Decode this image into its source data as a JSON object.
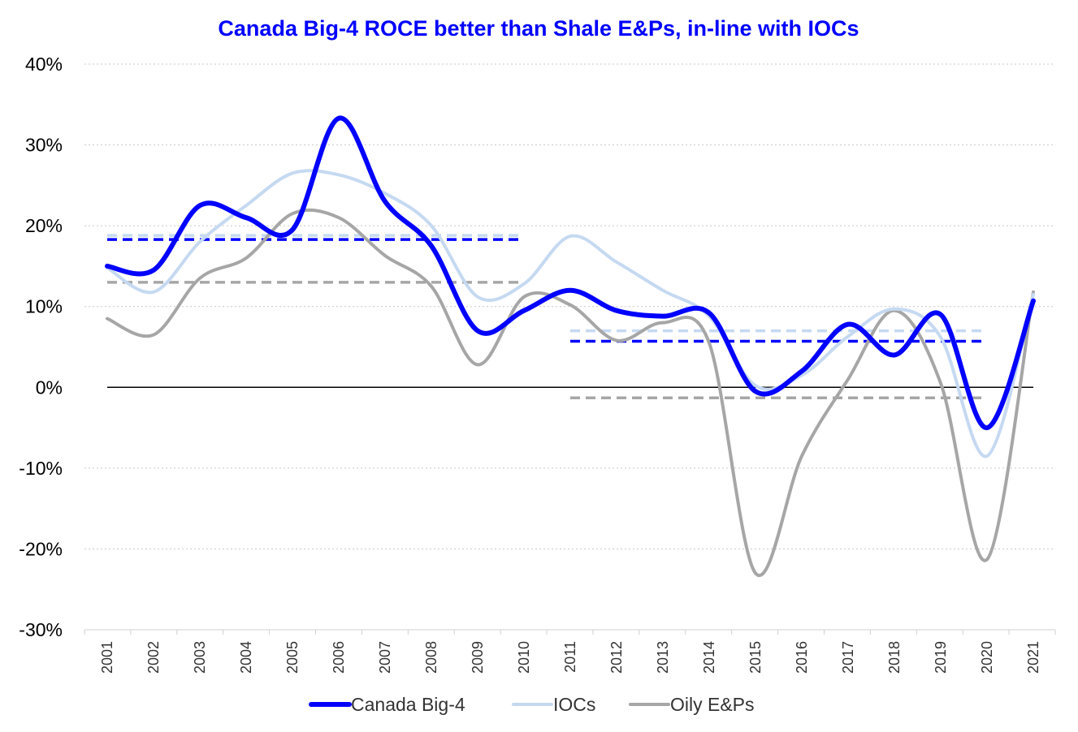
{
  "chart_data": {
    "type": "line",
    "title": "Canada Big-4 ROCE better than Shale E&Ps, in-line with IOCs",
    "title_color": "#0000ff",
    "xlabel": "",
    "ylabel": "",
    "ylim": [
      -30,
      40
    ],
    "y_ticks": [
      40,
      30,
      20,
      10,
      0,
      -10,
      -20,
      -30
    ],
    "y_tick_labels": [
      "40%",
      "30%",
      "20%",
      "10%",
      "0%",
      "-10%",
      "-20%",
      "-30%"
    ],
    "categories": [
      "2001",
      "2002",
      "2003",
      "2004",
      "2005",
      "2006",
      "2007",
      "2008",
      "2009",
      "2010",
      "2011",
      "2012",
      "2013",
      "2014",
      "2015",
      "2016",
      "2017",
      "2018",
      "2019",
      "2020",
      "2021"
    ],
    "grid": "horizontal dotted",
    "legend_position": "bottom",
    "series": [
      {
        "name": "Canada Big-4",
        "color": "#0000ff",
        "values": [
          15,
          14.5,
          22.5,
          21,
          19.5,
          33.3,
          23,
          17.5,
          7,
          9.5,
          12,
          9.5,
          8.8,
          9.2,
          -0.5,
          2,
          7.8,
          4,
          9,
          -5,
          10.7
        ]
      },
      {
        "name": "IOCs",
        "color": "#c5d9f1",
        "values": [
          14.8,
          11.8,
          18,
          22.5,
          26.5,
          26.3,
          24,
          20,
          11.2,
          12.8,
          18.7,
          15.5,
          12,
          8.8,
          0.2,
          1.5,
          6.3,
          9.7,
          6.2,
          -8.5,
          11.5
        ]
      },
      {
        "name": "Oily E&Ps",
        "color": "#a6a6a6",
        "values": [
          8.5,
          6.5,
          13.5,
          16,
          21.5,
          21,
          16.3,
          12.5,
          2.8,
          11.2,
          10.2,
          5.8,
          8,
          5.5,
          -23,
          -8.5,
          1,
          9.5,
          0.5,
          -21.3,
          11.8
        ]
      }
    ],
    "averages": [
      {
        "series": "IOCs",
        "color": "#c5d9f1",
        "from": "2001",
        "to": "2010",
        "value": 18.8
      },
      {
        "series": "Canada Big-4",
        "color": "#0000ff",
        "from": "2001",
        "to": "2010",
        "value": 18.3
      },
      {
        "series": "Oily E&Ps",
        "color": "#a6a6a6",
        "from": "2001",
        "to": "2010",
        "value": 13
      },
      {
        "series": "IOCs",
        "color": "#c5d9f1",
        "from": "2011",
        "to": "2020",
        "value": 7
      },
      {
        "series": "Canada Big-4",
        "color": "#0000ff",
        "from": "2011",
        "to": "2020",
        "value": 5.7
      },
      {
        "series": "Oily E&Ps",
        "color": "#a6a6a6",
        "from": "2011",
        "to": "2020",
        "value": -1.3
      }
    ]
  }
}
